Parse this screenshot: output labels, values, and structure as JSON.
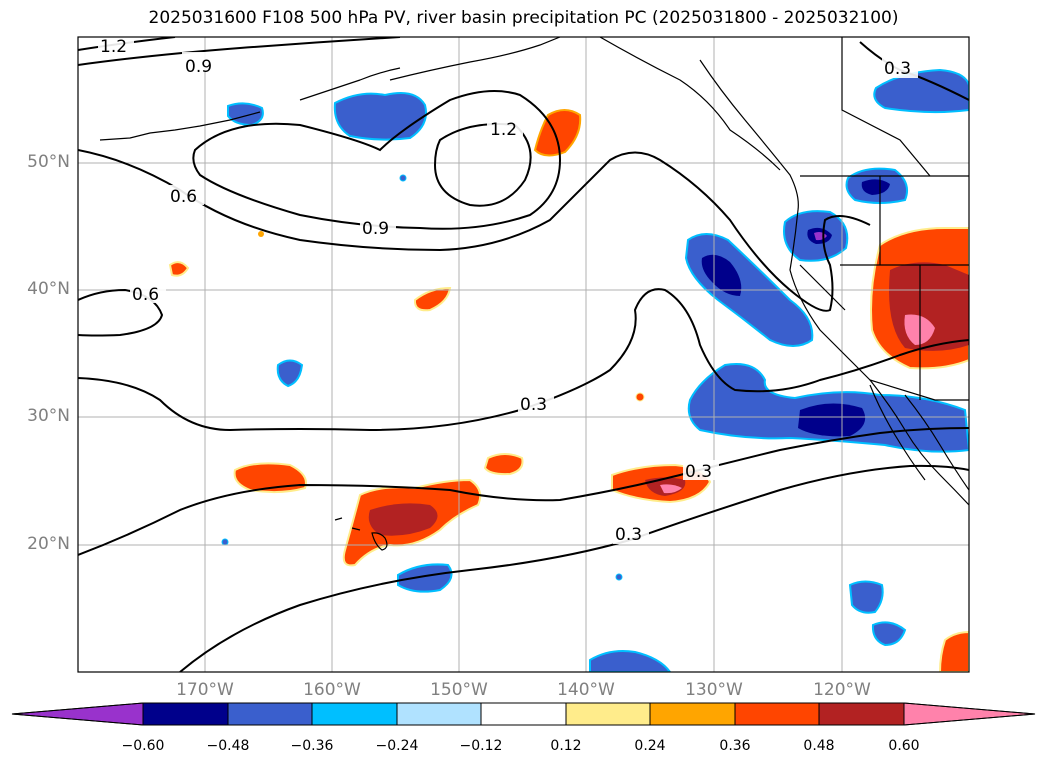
{
  "title": "2025031600 F108 500 hPa PV, river basin precipitation PC (2025031800 - 2025032100)",
  "map": {
    "lon_labels": [
      "170°W",
      "160°W",
      "150°W",
      "140°W",
      "130°W",
      "120°W"
    ],
    "lat_labels": [
      "50°N",
      "40°N",
      "30°N",
      "20°N"
    ],
    "contour_labels": [
      "1.2",
      "0.9",
      "1.2",
      "0.6",
      "0.9",
      "0.6",
      "0.3",
      "0.3",
      "0.3",
      "0.3"
    ],
    "colors": {
      "neg_extend": "#9932cc",
      "neg_060": "#00008b",
      "neg_048": "#3a5fcd",
      "neg_036": "#00bfff",
      "neg_024": "#b0e2ff",
      "neutral": "#ffffff",
      "pos_012": "#ffec8b",
      "pos_024": "#ffa500",
      "pos_036": "#ff4500",
      "pos_048": "#b22222",
      "pos_extend": "#ff82ab",
      "grid": "#b0b0b0",
      "contour": "#000000",
      "coast": "#000000"
    }
  },
  "colorbar": {
    "ticks": [
      "−0.60",
      "−0.48",
      "−0.36",
      "−0.24",
      "−0.12",
      "0.12",
      "0.24",
      "0.36",
      "0.48",
      "0.60"
    ],
    "segment_colors": [
      "#9932cc",
      "#00008b",
      "#3a5fcd",
      "#00bfff",
      "#b0e2ff",
      "#ffffff",
      "#ffec8b",
      "#ffa500",
      "#ff4500",
      "#b22222",
      "#ff82ab"
    ]
  }
}
